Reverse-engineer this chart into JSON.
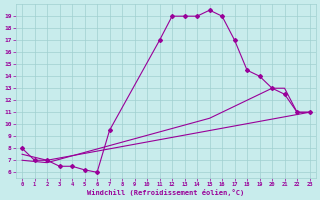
{
  "xlabel": "Windchill (Refroidissement éolien,°C)",
  "xlim": [
    -0.5,
    23.5
  ],
  "ylim": [
    5.5,
    20.0
  ],
  "yticks": [
    6,
    7,
    8,
    9,
    10,
    11,
    12,
    13,
    14,
    15,
    16,
    17,
    18,
    19
  ],
  "xticks": [
    0,
    1,
    2,
    3,
    4,
    5,
    6,
    7,
    8,
    9,
    10,
    11,
    12,
    13,
    14,
    15,
    16,
    17,
    18,
    19,
    20,
    21,
    22,
    23
  ],
  "bg_color": "#c8ecec",
  "grid_color": "#a0d0d0",
  "line_color": "#990099",
  "line1_x": [
    0,
    1,
    2,
    3,
    4,
    5,
    6,
    7,
    11,
    12,
    13,
    14,
    15,
    16,
    17,
    18,
    19,
    20,
    21,
    22,
    23
  ],
  "line1_y": [
    8,
    7,
    7,
    6.5,
    6.5,
    6.2,
    6.0,
    9.5,
    17,
    19,
    19,
    19,
    19.5,
    19,
    17,
    14.5,
    14,
    13,
    12.5,
    11,
    11
  ],
  "line2_x": [
    0,
    2,
    23
  ],
  "line2_y": [
    7.5,
    7,
    11
  ],
  "line3_x": [
    0,
    2,
    15,
    20,
    21,
    22,
    23
  ],
  "line3_y": [
    7,
    6.8,
    10.5,
    13,
    13,
    11,
    11
  ]
}
